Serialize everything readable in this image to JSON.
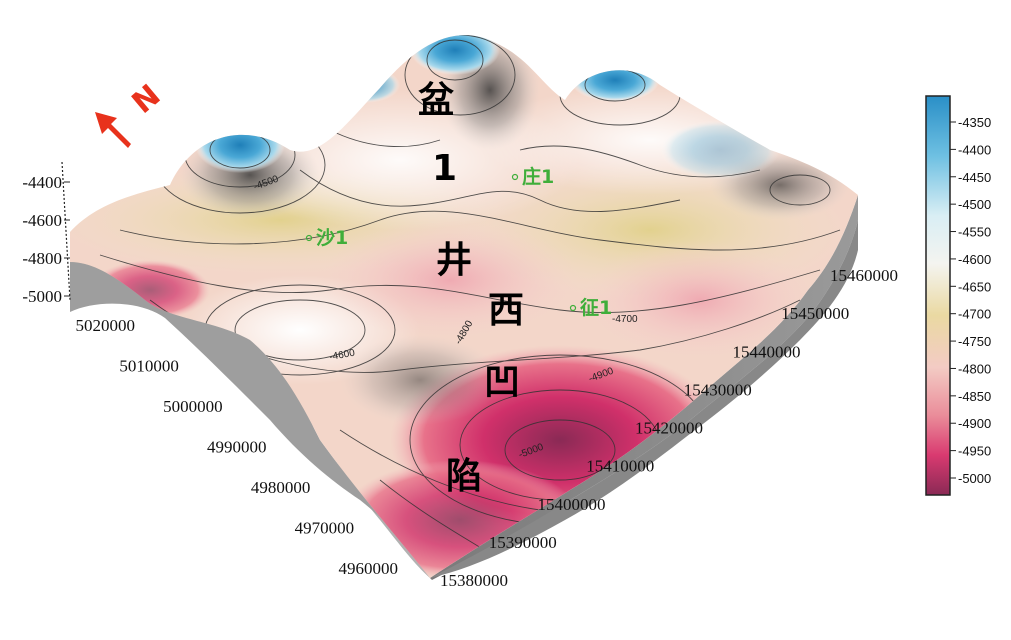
{
  "chart_data": {
    "type": "3d-surface",
    "north_label": "N",
    "z_axis": {
      "ticks": [
        "-4400",
        "-4600",
        "-4800",
        "-5000"
      ]
    },
    "y_axis": {
      "ticks": [
        "5020000",
        "5010000",
        "5000000",
        "4990000",
        "4980000",
        "4970000",
        "4960000"
      ]
    },
    "x_axis": {
      "ticks": [
        "15380000",
        "15390000",
        "15400000",
        "15410000",
        "15420000",
        "15430000",
        "15440000",
        "15450000",
        "15460000"
      ]
    },
    "colorbar": {
      "labels": [
        "-4350",
        "-4400",
        "-4450",
        "-4500",
        "-4550",
        "-4600",
        "-4650",
        "-4700",
        "-4750",
        "-4800",
        "-4850",
        "-4900",
        "-4950",
        "-5000"
      ],
      "colors": [
        "#2a8fc7",
        "#3aa2d4",
        "#5fb8de",
        "#8ecde8",
        "#c2e3ef",
        "#eef3f3",
        "#ece4c4",
        "#e8d8a0",
        "#f2c9c4",
        "#eeaab0",
        "#e8808f",
        "#e2567a",
        "#d23068",
        "#9c2c5a"
      ]
    },
    "region_labels": [
      "盆",
      "1",
      "井",
      "西",
      "凹",
      "陷"
    ],
    "wells": [
      "庄1",
      "沙1",
      "征1"
    ],
    "contour_labels": [
      "-4500",
      "-4600",
      "-4700",
      "-4800",
      "-4900",
      "-5000"
    ],
    "z_range": [
      -5000,
      -4350
    ]
  }
}
